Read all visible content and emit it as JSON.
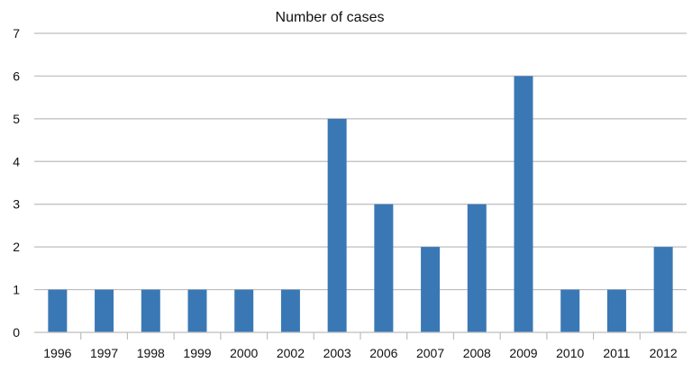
{
  "chart_data": {
    "type": "bar",
    "title": "Number of cases",
    "xlabel": "",
    "ylabel": "",
    "categories": [
      "1996",
      "1997",
      "1998",
      "1999",
      "2000",
      "2002",
      "2003",
      "2006",
      "2007",
      "2008",
      "2009",
      "2010",
      "2011",
      "2012"
    ],
    "values": [
      1,
      1,
      1,
      1,
      1,
      1,
      5,
      3,
      2,
      3,
      6,
      1,
      1,
      2
    ],
    "ylim": [
      0,
      7
    ],
    "yticks": [
      0,
      1,
      2,
      3,
      4,
      5,
      6,
      7
    ],
    "grid": true,
    "legend": "none",
    "bar_color": "#3A78B5",
    "grid_color": "#BDBDBD"
  }
}
